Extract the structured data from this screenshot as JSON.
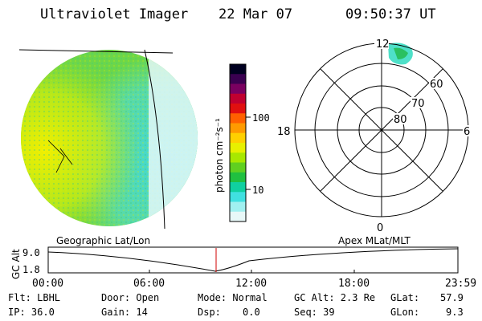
{
  "header": {
    "title": "Ultraviolet Imager",
    "date": "22 Mar 07",
    "time": "09:50:37 UT"
  },
  "colorbar": {
    "label": "photon cm⁻²s⁻¹",
    "ticks": [
      "100",
      "10"
    ],
    "colors": [
      "#000020",
      "#3a0050",
      "#7a0060",
      "#c00030",
      "#e01010",
      "#ff6000",
      "#ff9a00",
      "#ffd000",
      "#e8f000",
      "#a8e800",
      "#60d020",
      "#20c040",
      "#10d0a0",
      "#40e0e0",
      "#a0f0f0",
      "#e8f8f8"
    ]
  },
  "polar": {
    "mlt_labels": [
      "12",
      "18",
      "6",
      "0"
    ],
    "lat_labels": [
      "60",
      "70",
      "80"
    ]
  },
  "timeline": {
    "left_title": "Geographic Lat/Lon",
    "right_title": "Apex MLat/MLT",
    "y_axis_label": "GC Alt",
    "y_ticks": [
      "9.0",
      "1.8"
    ],
    "x_ticks": [
      "00:00",
      "06:00",
      "12:00",
      "18:00",
      "23:59"
    ],
    "marker_color": "#d00000"
  },
  "info": {
    "flt": "Flt: LBHL",
    "ip": "IP: 36.0",
    "door": "Door: Open",
    "gain": "Gain: 14",
    "mode": "Mode: Normal",
    "dsp_label": "Dsp:",
    "dsp_value": "0.0",
    "gc_alt": "GC Alt: 2.3 Re",
    "seq": "Seq: 39",
    "glat_label": "GLat:",
    "glat_value": "57.9",
    "glon_label": "GLon:",
    "glon_value": "9.3"
  }
}
